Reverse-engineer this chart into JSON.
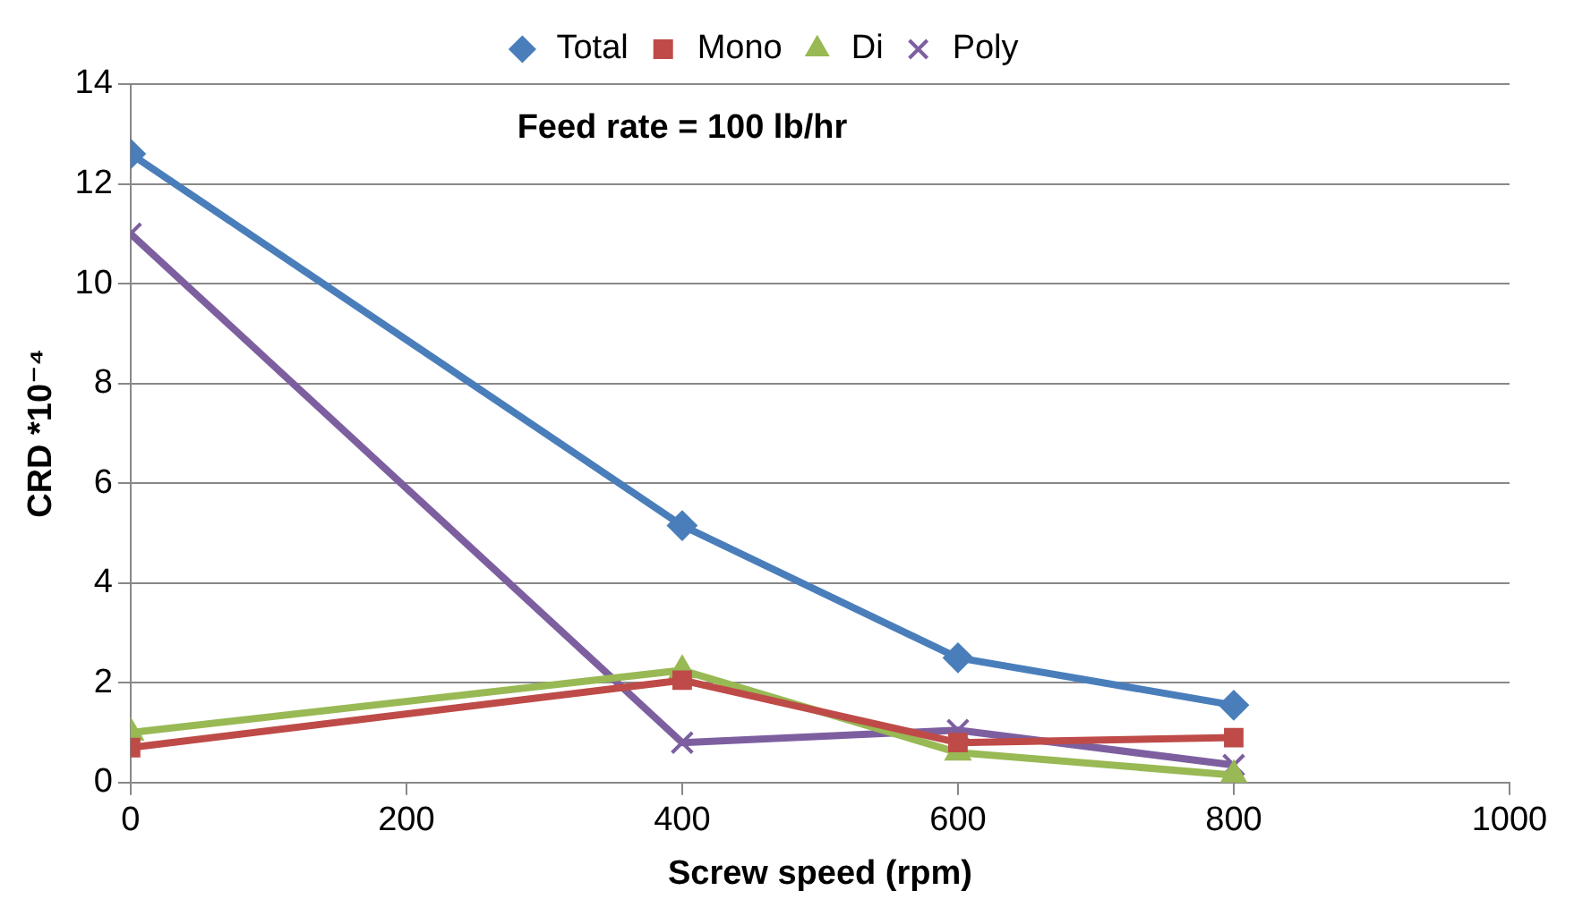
{
  "chart_data": {
    "type": "line",
    "xlabel": "Screw speed (rpm)",
    "ylabel": "CRD *10⁻⁴",
    "annotations": [
      "Feed rate = 100 lb/hr"
    ],
    "x": [
      0,
      400,
      600,
      800
    ],
    "series": [
      {
        "name": "Total",
        "color": "#4a7ebb",
        "marker": "diamond",
        "values": [
          12.6,
          5.15,
          2.5,
          1.55
        ]
      },
      {
        "name": "Mono",
        "color": "#be4b48",
        "marker": "square",
        "values": [
          0.7,
          2.05,
          0.8,
          0.9
        ]
      },
      {
        "name": "Di",
        "color": "#98b954",
        "marker": "triangle",
        "values": [
          1.0,
          2.25,
          0.6,
          0.15
        ]
      },
      {
        "name": "Poly",
        "color": "#7d5fa0",
        "marker": "cross",
        "values": [
          11.0,
          0.8,
          1.05,
          0.35
        ]
      }
    ],
    "xlim": [
      0,
      1000
    ],
    "xticks": [
      0,
      200,
      400,
      600,
      800,
      1000
    ],
    "ylim": [
      0,
      14
    ],
    "yticks": [
      0,
      2,
      4,
      6,
      8,
      10,
      12,
      14
    ],
    "grid": "y",
    "legend": "top",
    "line_style": "solid"
  }
}
